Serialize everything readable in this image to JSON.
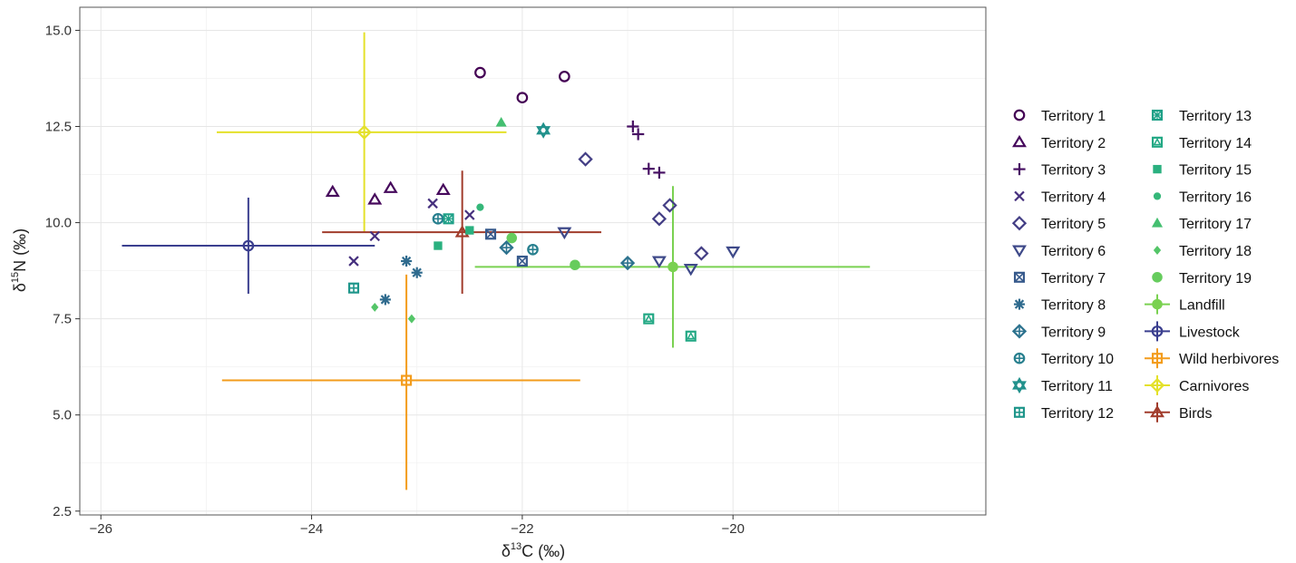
{
  "chart_data": {
    "type": "scatter",
    "title": "",
    "xlabel": {
      "main": "δ",
      "sup": "13",
      "rest": "C (‰)"
    },
    "ylabel": {
      "main": "δ",
      "sup": "15",
      "rest": "N (‰)"
    },
    "xlim": [
      -26.2,
      -17.6
    ],
    "ylim": [
      2.4,
      15.6
    ],
    "x_ticks": [
      -26,
      -24,
      -22,
      -20
    ],
    "x_tick_labels": [
      "−26",
      "−24",
      "−22",
      "−20"
    ],
    "y_ticks": [
      2.5,
      5.0,
      7.5,
      10.0,
      12.5,
      15.0
    ],
    "y_tick_labels": [
      "2.5",
      "5.0",
      "7.5",
      "10.0",
      "12.5",
      "15.0"
    ],
    "grid": true,
    "legend_position": "right",
    "series": [
      {
        "name": "Territory 1",
        "color": "#440154",
        "shape": "circle-open",
        "points": [
          [
            -22.4,
            13.9
          ],
          [
            -22.0,
            13.25
          ],
          [
            -21.6,
            13.8
          ]
        ]
      },
      {
        "name": "Territory 2",
        "color": "#46085c",
        "shape": "triangle-open",
        "points": [
          [
            -23.8,
            10.8
          ],
          [
            -23.4,
            10.6
          ],
          [
            -23.25,
            10.9
          ],
          [
            -22.75,
            10.85
          ]
        ]
      },
      {
        "name": "Territory 3",
        "color": "#471063",
        "shape": "plus",
        "points": [
          [
            -20.95,
            12.5
          ],
          [
            -20.9,
            12.3
          ],
          [
            -20.8,
            11.4
          ],
          [
            -20.7,
            11.3
          ]
        ]
      },
      {
        "name": "Territory 4",
        "color": "#46307e",
        "shape": "cross",
        "points": [
          [
            -23.6,
            9.0
          ],
          [
            -23.4,
            9.65
          ],
          [
            -22.85,
            10.5
          ],
          [
            -22.5,
            10.2
          ]
        ]
      },
      {
        "name": "Territory 5",
        "color": "#433e85",
        "shape": "diamond-open",
        "points": [
          [
            -21.4,
            11.65
          ],
          [
            -20.7,
            10.1
          ],
          [
            -20.6,
            10.45
          ],
          [
            -20.3,
            9.2
          ]
        ]
      },
      {
        "name": "Territory 6",
        "color": "#3e4989",
        "shape": "triangle-down-open",
        "points": [
          [
            -21.6,
            9.75
          ],
          [
            -20.7,
            9.0
          ],
          [
            -20.4,
            8.8
          ],
          [
            -20.0,
            9.25
          ]
        ]
      },
      {
        "name": "Territory 7",
        "color": "#375a8c",
        "shape": "square-cross",
        "points": [
          [
            -22.3,
            9.7
          ],
          [
            -22.0,
            9.0
          ]
        ]
      },
      {
        "name": "Territory 8",
        "color": "#2f6b8e",
        "shape": "asterisk",
        "points": [
          [
            -23.3,
            8.0
          ],
          [
            -23.1,
            9.0
          ],
          [
            -23.0,
            8.7
          ]
        ]
      },
      {
        "name": "Territory 9",
        "color": "#2c728e",
        "shape": "diamond-plus",
        "points": [
          [
            -22.15,
            9.35
          ],
          [
            -21.0,
            8.95
          ]
        ]
      },
      {
        "name": "Territory 10",
        "color": "#277f8e",
        "shape": "circle-plus",
        "points": [
          [
            -22.8,
            10.1
          ],
          [
            -21.9,
            9.3
          ]
        ]
      },
      {
        "name": "Territory 11",
        "color": "#21918c",
        "shape": "star-of-david",
        "points": [
          [
            -21.8,
            12.4
          ]
        ]
      },
      {
        "name": "Territory 12",
        "color": "#1f968b",
        "shape": "square-plus",
        "points": [
          [
            -23.6,
            8.3
          ]
        ]
      },
      {
        "name": "Territory 13",
        "color": "#1fa188",
        "shape": "square-x",
        "points": [
          [
            -22.7,
            10.1
          ]
        ]
      },
      {
        "name": "Territory 14",
        "color": "#22a884",
        "shape": "square-triangle",
        "points": [
          [
            -20.8,
            7.5
          ],
          [
            -20.4,
            7.05
          ]
        ]
      },
      {
        "name": "Territory 15",
        "color": "#2ab07f",
        "shape": "square-filled",
        "points": [
          [
            -22.8,
            9.4
          ],
          [
            -22.5,
            9.8
          ]
        ]
      },
      {
        "name": "Territory 16",
        "color": "#35b779",
        "shape": "circle-filled-small",
        "points": [
          [
            -22.4,
            10.4
          ]
        ]
      },
      {
        "name": "Territory 17",
        "color": "#44bf70",
        "shape": "triangle-filled",
        "points": [
          [
            -22.2,
            12.6
          ]
        ]
      },
      {
        "name": "Territory 18",
        "color": "#54c568",
        "shape": "diamond-filled",
        "points": [
          [
            -23.4,
            7.8
          ],
          [
            -23.05,
            7.5
          ]
        ]
      },
      {
        "name": "Territory 19",
        "color": "#66cc5d",
        "shape": "circle-filled",
        "points": [
          [
            -22.1,
            9.6
          ],
          [
            -21.5,
            8.9
          ]
        ]
      }
    ],
    "sources": [
      {
        "name": "Landfill",
        "color": "#7ad151",
        "shape": "circle-filled",
        "x": -20.57,
        "y": 8.85,
        "xmin": -22.45,
        "xmax": -18.7,
        "ymin": 6.75,
        "ymax": 10.95
      },
      {
        "name": "Livestock",
        "color": "#3b3f8f",
        "shape": "circle-plus",
        "x": -24.6,
        "y": 9.4,
        "xmin": -25.8,
        "xmax": -23.4,
        "ymin": 8.15,
        "ymax": 10.65
      },
      {
        "name": "Wild herbivores",
        "color": "#f39c1c",
        "shape": "square-open",
        "x": -23.1,
        "y": 5.9,
        "xmin": -24.85,
        "xmax": -21.45,
        "ymin": 3.05,
        "ymax": 8.65
      },
      {
        "name": "Carnivores",
        "color": "#e4e12a",
        "shape": "diamond-plus",
        "x": -23.5,
        "y": 12.35,
        "xmin": -24.9,
        "xmax": -22.15,
        "ymin": 9.75,
        "ymax": 14.95
      },
      {
        "name": "Birds",
        "color": "#a13c2c",
        "shape": "triangle-open",
        "x": -22.57,
        "y": 9.75,
        "xmin": -23.9,
        "xmax": -21.25,
        "ymin": 8.15,
        "ymax": 11.35
      }
    ]
  }
}
